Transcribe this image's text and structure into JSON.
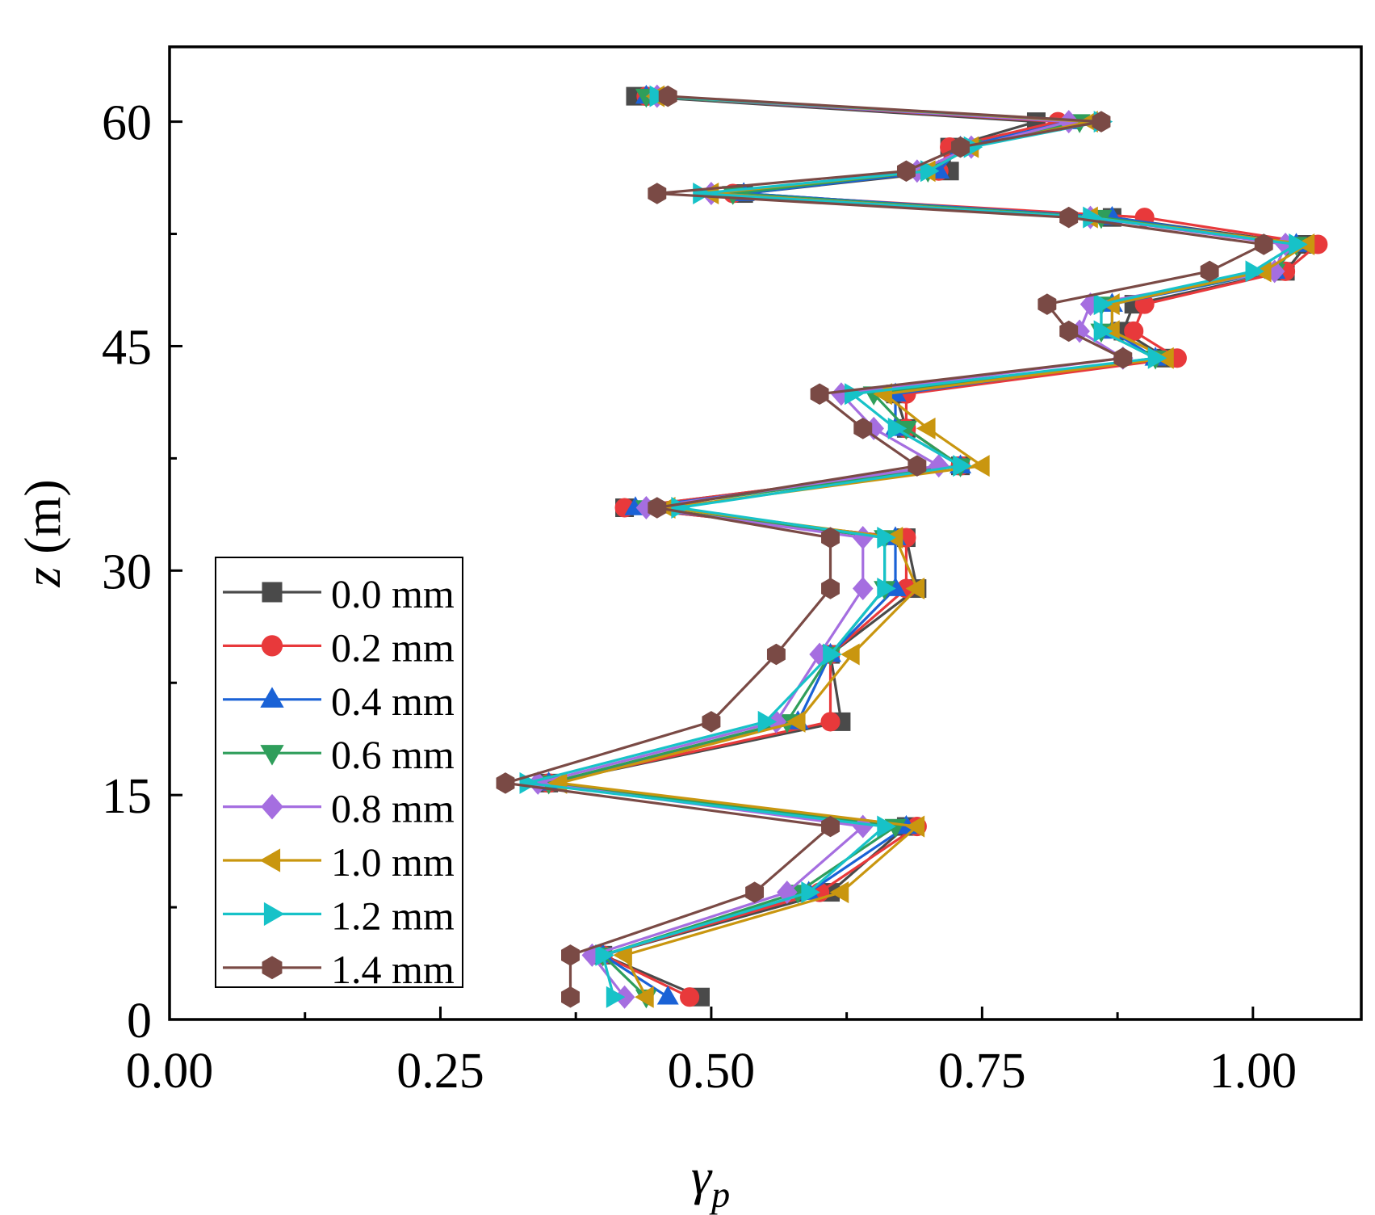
{
  "chart_data": {
    "type": "line",
    "title": "",
    "xlabel": "γ",
    "xlabel_subscript": "p",
    "ylabel_var": "z",
    "ylabel_unit": "(m)",
    "xlim": [
      0.0,
      1.1
    ],
    "ylim": [
      0,
      65
    ],
    "x_ticks": [
      "0.00",
      "0.25",
      "0.50",
      "0.75",
      "1.00"
    ],
    "x_tick_values": [
      0.0,
      0.25,
      0.5,
      0.75,
      1.0
    ],
    "y_ticks": [
      "0",
      "15",
      "30",
      "45",
      "60"
    ],
    "y_tick_values": [
      0,
      15,
      30,
      45,
      60
    ],
    "legend_position": "bottom-left",
    "z": [
      1.5,
      4.3,
      8.5,
      12.9,
      15.8,
      19.9,
      24.4,
      28.8,
      32.2,
      34.2,
      37.0,
      39.5,
      41.8,
      44.2,
      46.0,
      47.8,
      50.0,
      51.8,
      53.6,
      55.2,
      56.7,
      58.3,
      60.0,
      61.7
    ],
    "series": [
      {
        "name": "0.0 mm",
        "color": "#4a4a4a",
        "marker": "square",
        "values": [
          0.49,
          0.4,
          0.61,
          0.68,
          0.35,
          0.62,
          0.61,
          0.69,
          0.68,
          0.42,
          0.73,
          0.68,
          0.67,
          0.92,
          0.88,
          0.89,
          1.03,
          1.05,
          0.87,
          0.53,
          0.72,
          0.72,
          0.8,
          0.43
        ]
      },
      {
        "name": "0.2 mm",
        "color": "#e8393b",
        "marker": "circle",
        "values": [
          0.48,
          0.4,
          0.6,
          0.69,
          0.35,
          0.61,
          0.61,
          0.68,
          0.68,
          0.42,
          0.73,
          0.68,
          0.68,
          0.93,
          0.89,
          0.9,
          1.03,
          1.06,
          0.9,
          0.52,
          0.71,
          0.72,
          0.82,
          0.44
        ]
      },
      {
        "name": "0.4 mm",
        "color": "#1a62d6",
        "marker": "triangle-up",
        "values": [
          0.46,
          0.4,
          0.59,
          0.68,
          0.35,
          0.58,
          0.61,
          0.67,
          0.67,
          0.43,
          0.73,
          0.67,
          0.67,
          0.91,
          0.87,
          0.87,
          1.02,
          1.04,
          0.87,
          0.53,
          0.71,
          0.73,
          0.83,
          0.44
        ]
      },
      {
        "name": "0.6 mm",
        "color": "#2f9e5b",
        "marker": "triangle-down",
        "values": [
          0.44,
          0.4,
          0.58,
          0.67,
          0.35,
          0.57,
          0.61,
          0.66,
          0.66,
          0.44,
          0.73,
          0.68,
          0.65,
          0.91,
          0.86,
          0.86,
          1.02,
          1.04,
          0.86,
          0.52,
          0.7,
          0.74,
          0.84,
          0.44
        ]
      },
      {
        "name": "0.8 mm",
        "color": "#a56ee0",
        "marker": "diamond",
        "values": [
          0.42,
          0.39,
          0.57,
          0.64,
          0.34,
          0.56,
          0.6,
          0.64,
          0.64,
          0.44,
          0.71,
          0.65,
          0.62,
          0.88,
          0.84,
          0.85,
          1.02,
          1.03,
          0.85,
          0.5,
          0.69,
          0.74,
          0.83,
          0.45
        ]
      },
      {
        "name": "1.0 mm",
        "color": "#c9960f",
        "marker": "triangle-left",
        "values": [
          0.44,
          0.42,
          0.62,
          0.69,
          0.36,
          0.58,
          0.63,
          0.69,
          0.67,
          0.46,
          0.75,
          0.7,
          0.66,
          0.92,
          0.87,
          0.87,
          1.01,
          1.05,
          0.85,
          0.5,
          0.7,
          0.74,
          0.85,
          0.45
        ]
      },
      {
        "name": "1.2 mm",
        "color": "#17c2c8",
        "marker": "triangle-right",
        "values": [
          0.41,
          0.4,
          0.59,
          0.66,
          0.33,
          0.55,
          0.61,
          0.66,
          0.66,
          0.47,
          0.73,
          0.67,
          0.63,
          0.91,
          0.86,
          0.86,
          1.0,
          1.04,
          0.85,
          0.49,
          0.7,
          0.74,
          0.86,
          0.45
        ]
      },
      {
        "name": "1.4 mm",
        "color": "#7a4a45",
        "marker": "hexagon",
        "values": [
          0.37,
          0.37,
          0.54,
          0.61,
          0.31,
          0.5,
          0.56,
          0.61,
          0.61,
          0.45,
          0.69,
          0.64,
          0.6,
          0.88,
          0.83,
          0.81,
          0.96,
          1.01,
          0.83,
          0.45,
          0.68,
          0.73,
          0.86,
          0.46
        ]
      }
    ]
  }
}
